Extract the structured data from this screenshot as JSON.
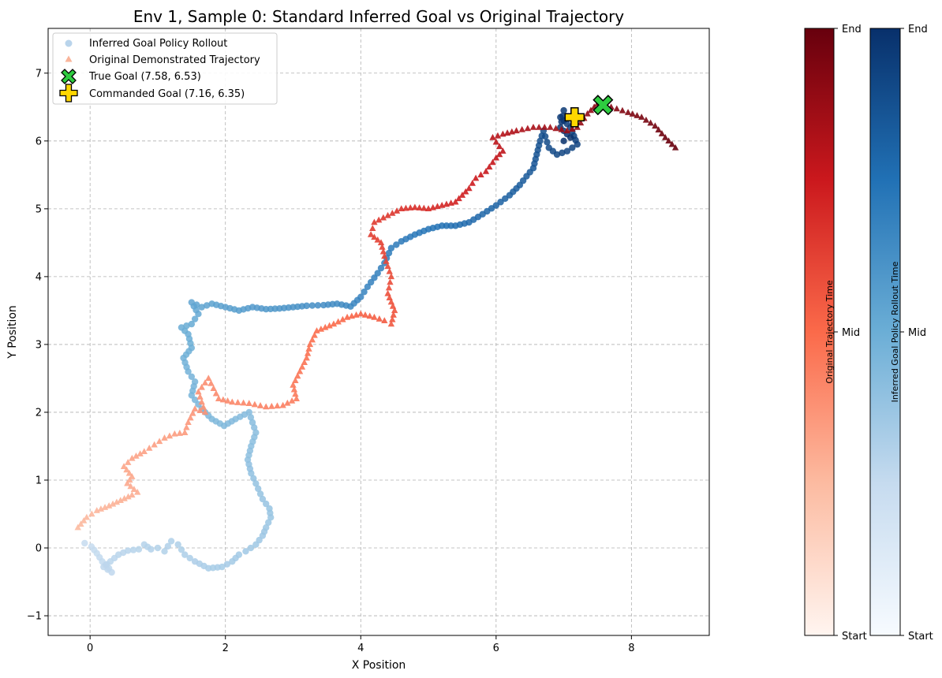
{
  "chart_data": {
    "type": "scatter",
    "title": "Env 1, Sample 0: Standard Inferred Goal vs Original Trajectory",
    "xlabel": "X Position",
    "ylabel": "Y Position",
    "xlim": [
      -0.62,
      9.15
    ],
    "ylim": [
      -1.29,
      7.66
    ],
    "xticks": [
      0,
      2,
      4,
      6,
      8
    ],
    "yticks": [
      -1,
      0,
      1,
      2,
      3,
      4,
      5,
      6,
      7
    ],
    "grid": true,
    "legend_position": "top-left",
    "series": [
      {
        "name": "Inferred Goal Policy Rollout",
        "marker": "circle",
        "colormap": "Blues",
        "path": [
          [
            -0.08,
            0.07
          ],
          [
            0.02,
            0.02
          ],
          [
            0.1,
            -0.08
          ],
          [
            0.18,
            -0.2
          ],
          [
            0.28,
            -0.3
          ],
          [
            0.32,
            -0.36
          ],
          [
            0.2,
            -0.28
          ],
          [
            0.3,
            -0.2
          ],
          [
            0.42,
            -0.1
          ],
          [
            0.56,
            -0.04
          ],
          [
            0.72,
            -0.02
          ],
          [
            0.8,
            0.05
          ],
          [
            0.9,
            -0.02
          ],
          [
            1.0,
            0.0
          ],
          [
            1.1,
            -0.05
          ],
          [
            1.2,
            0.1
          ],
          [
            1.3,
            0.05
          ],
          [
            1.4,
            -0.1
          ],
          [
            1.55,
            -0.2
          ],
          [
            1.75,
            -0.3
          ],
          [
            1.95,
            -0.28
          ],
          [
            2.1,
            -0.2
          ],
          [
            2.2,
            -0.1
          ],
          [
            2.3,
            -0.05
          ],
          [
            2.45,
            0.05
          ],
          [
            2.55,
            0.18
          ],
          [
            2.6,
            0.3
          ],
          [
            2.67,
            0.45
          ],
          [
            2.65,
            0.58
          ],
          [
            2.55,
            0.72
          ],
          [
            2.45,
            0.95
          ],
          [
            2.38,
            1.1
          ],
          [
            2.33,
            1.3
          ],
          [
            2.38,
            1.5
          ],
          [
            2.45,
            1.7
          ],
          [
            2.4,
            1.85
          ],
          [
            2.35,
            2.0
          ],
          [
            2.15,
            1.9
          ],
          [
            1.98,
            1.8
          ],
          [
            1.8,
            1.9
          ],
          [
            1.65,
            2.05
          ],
          [
            1.5,
            2.25
          ],
          [
            1.55,
            2.45
          ],
          [
            1.45,
            2.6
          ],
          [
            1.38,
            2.8
          ],
          [
            1.5,
            2.95
          ],
          [
            1.45,
            3.15
          ],
          [
            1.35,
            3.25
          ],
          [
            1.5,
            3.3
          ],
          [
            1.6,
            3.45
          ],
          [
            1.5,
            3.62
          ],
          [
            1.65,
            3.55
          ],
          [
            1.8,
            3.6
          ],
          [
            2.0,
            3.55
          ],
          [
            2.2,
            3.5
          ],
          [
            2.4,
            3.55
          ],
          [
            2.6,
            3.52
          ],
          [
            2.8,
            3.53
          ],
          [
            3.0,
            3.55
          ],
          [
            3.2,
            3.57
          ],
          [
            3.45,
            3.58
          ],
          [
            3.65,
            3.6
          ],
          [
            3.85,
            3.56
          ],
          [
            4.0,
            3.7
          ],
          [
            4.1,
            3.85
          ],
          [
            4.25,
            4.05
          ],
          [
            4.35,
            4.2
          ],
          [
            4.45,
            4.42
          ],
          [
            4.6,
            4.52
          ],
          [
            4.8,
            4.62
          ],
          [
            5.0,
            4.7
          ],
          [
            5.2,
            4.75
          ],
          [
            5.4,
            4.75
          ],
          [
            5.6,
            4.8
          ],
          [
            5.8,
            4.92
          ],
          [
            6.0,
            5.05
          ],
          [
            6.2,
            5.2
          ],
          [
            6.35,
            5.35
          ],
          [
            6.45,
            5.48
          ],
          [
            6.55,
            5.6
          ],
          [
            6.6,
            5.8
          ],
          [
            6.65,
            6.0
          ],
          [
            6.7,
            6.15
          ],
          [
            6.78,
            5.9
          ],
          [
            6.9,
            5.8
          ],
          [
            7.05,
            5.85
          ],
          [
            7.2,
            5.95
          ],
          [
            7.1,
            6.2
          ],
          [
            6.95,
            6.35
          ],
          [
            7.0,
            6.45
          ],
          [
            6.95,
            6.2
          ],
          [
            7.05,
            6.1
          ],
          [
            7.0,
            6.0
          ],
          [
            7.1,
            6.05
          ]
        ]
      },
      {
        "name": "Original Demonstrated Trajectory",
        "marker": "triangle",
        "colormap": "Reds",
        "path": [
          [
            -0.18,
            0.3
          ],
          [
            -0.05,
            0.45
          ],
          [
            0.1,
            0.55
          ],
          [
            0.28,
            0.62
          ],
          [
            0.45,
            0.7
          ],
          [
            0.62,
            0.78
          ],
          [
            0.7,
            0.82
          ],
          [
            0.55,
            0.95
          ],
          [
            0.62,
            1.05
          ],
          [
            0.5,
            1.2
          ],
          [
            0.62,
            1.32
          ],
          [
            0.8,
            1.42
          ],
          [
            0.95,
            1.52
          ],
          [
            1.1,
            1.62
          ],
          [
            1.25,
            1.68
          ],
          [
            1.4,
            1.7
          ],
          [
            1.45,
            1.85
          ],
          [
            1.55,
            2.05
          ],
          [
            1.7,
            2.0
          ],
          [
            1.6,
            2.3
          ],
          [
            1.75,
            2.5
          ],
          [
            1.9,
            2.2
          ],
          [
            2.1,
            2.15
          ],
          [
            2.35,
            2.13
          ],
          [
            2.6,
            2.08
          ],
          [
            2.85,
            2.1
          ],
          [
            3.05,
            2.2
          ],
          [
            3.0,
            2.4
          ],
          [
            3.1,
            2.6
          ],
          [
            3.2,
            2.8
          ],
          [
            3.25,
            3.0
          ],
          [
            3.35,
            3.2
          ],
          [
            3.6,
            3.3
          ],
          [
            3.8,
            3.4
          ],
          [
            4.0,
            3.45
          ],
          [
            4.2,
            3.4
          ],
          [
            4.35,
            3.35
          ],
          [
            4.45,
            3.3
          ],
          [
            4.5,
            3.5
          ],
          [
            4.4,
            3.75
          ],
          [
            4.45,
            4.0
          ],
          [
            4.35,
            4.3
          ],
          [
            4.3,
            4.5
          ],
          [
            4.15,
            4.62
          ],
          [
            4.2,
            4.8
          ],
          [
            4.4,
            4.9
          ],
          [
            4.6,
            5.0
          ],
          [
            4.8,
            5.02
          ],
          [
            5.0,
            5.0
          ],
          [
            5.2,
            5.05
          ],
          [
            5.4,
            5.1
          ],
          [
            5.6,
            5.3
          ],
          [
            5.7,
            5.45
          ],
          [
            5.85,
            5.55
          ],
          [
            6.0,
            5.75
          ],
          [
            6.1,
            5.85
          ],
          [
            5.95,
            6.05
          ],
          [
            6.1,
            6.1
          ],
          [
            6.3,
            6.15
          ],
          [
            6.55,
            6.2
          ],
          [
            6.8,
            6.2
          ],
          [
            7.05,
            6.15
          ],
          [
            7.2,
            6.2
          ],
          [
            7.35,
            6.4
          ],
          [
            7.5,
            6.55
          ],
          [
            7.7,
            6.5
          ],
          [
            7.95,
            6.42
          ],
          [
            8.15,
            6.35
          ],
          [
            8.35,
            6.22
          ],
          [
            8.5,
            6.05
          ],
          [
            8.65,
            5.9
          ]
        ]
      }
    ],
    "markers": [
      {
        "name": "True Goal (7.58, 6.53)",
        "symbol": "X",
        "x": 7.58,
        "y": 6.53,
        "color": "#2ecc40"
      },
      {
        "name": "Commanded Goal (7.16, 6.35)",
        "symbol": "plus",
        "x": 7.16,
        "y": 6.35,
        "color": "#ffd700"
      }
    ],
    "colorbars": [
      {
        "label": "Original Trajectory Time",
        "colormap": "Reds",
        "ticks": [
          "Start",
          "Mid",
          "End"
        ]
      },
      {
        "label": "Inferred Goal Policy Rollout Time",
        "colormap": "Blues",
        "ticks": [
          "Start",
          "Mid",
          "End"
        ]
      }
    ]
  }
}
